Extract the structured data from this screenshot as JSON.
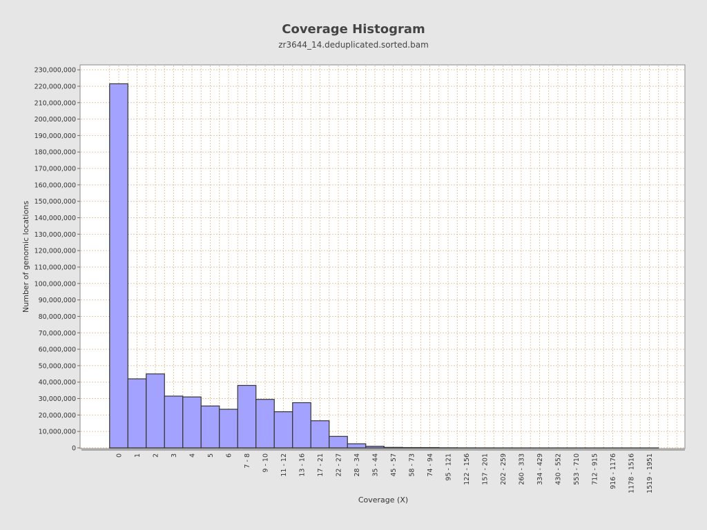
{
  "chart_data": {
    "type": "bar",
    "title": "Coverage Histogram",
    "subtitle": "zr3644_14.deduplicated.sorted.bam",
    "x_label": "Coverage (X)",
    "y_label": "Number of genomic locations",
    "categories": [
      "0",
      "1",
      "2",
      "3",
      "4",
      "5",
      "6",
      "7 - 8",
      "9 - 10",
      "11 - 12",
      "13 - 16",
      "17 - 21",
      "22 - 27",
      "28 - 34",
      "35 - 44",
      "45 - 57",
      "58 - 73",
      "74 - 94",
      "95 - 121",
      "122 - 156",
      "157 - 201",
      "202 - 259",
      "260 - 333",
      "334 - 429",
      "430 - 552",
      "553 - 710",
      "712 - 915",
      "916 - 1176",
      "1178 - 1516",
      "1519 - 1951"
    ],
    "values": [
      221500000,
      42000000,
      45000000,
      31500000,
      31000000,
      25500000,
      23500000,
      38000000,
      29500000,
      22000000,
      27500000,
      16500000,
      7000000,
      2500000,
      1000000,
      300000,
      200000,
      200000,
      80000,
      40000,
      20000,
      10000,
      5000,
      3000,
      2000,
      1000,
      1000,
      500,
      300,
      200
    ],
    "color": "#a3a3ff",
    "ylim": [
      0,
      233000000
    ],
    "yticks": [
      {
        "value": 0,
        "label": "0"
      },
      {
        "value": 10000000,
        "label": "10,000,000"
      },
      {
        "value": 20000000,
        "label": "20,000,000"
      },
      {
        "value": 30000000,
        "label": "30,000,000"
      },
      {
        "value": 40000000,
        "label": "40,000,000"
      },
      {
        "value": 50000000,
        "label": "50,000,000"
      },
      {
        "value": 60000000,
        "label": "60,000,000"
      },
      {
        "value": 70000000,
        "label": "70,000,000"
      },
      {
        "value": 80000000,
        "label": "80,000,000"
      },
      {
        "value": 90000000,
        "label": "90,000,000"
      },
      {
        "value": 100000000,
        "label": "100,000,000"
      },
      {
        "value": 110000000,
        "label": "110,000,000"
      },
      {
        "value": 120000000,
        "label": "120,000,000"
      },
      {
        "value": 130000000,
        "label": "130,000,000"
      },
      {
        "value": 140000000,
        "label": "140,000,000"
      },
      {
        "value": 150000000,
        "label": "150,000,000"
      },
      {
        "value": 160000000,
        "label": "160,000,000"
      },
      {
        "value": 170000000,
        "label": "170,000,000"
      },
      {
        "value": 180000000,
        "label": "180,000,000"
      },
      {
        "value": 190000000,
        "label": "190,000,000"
      },
      {
        "value": 200000000,
        "label": "200,000,000"
      },
      {
        "value": 210000000,
        "label": "210,000,000"
      },
      {
        "value": 220000000,
        "label": "220,000,000"
      },
      {
        "value": 230000000,
        "label": "230,000,000"
      }
    ],
    "grid": true
  }
}
